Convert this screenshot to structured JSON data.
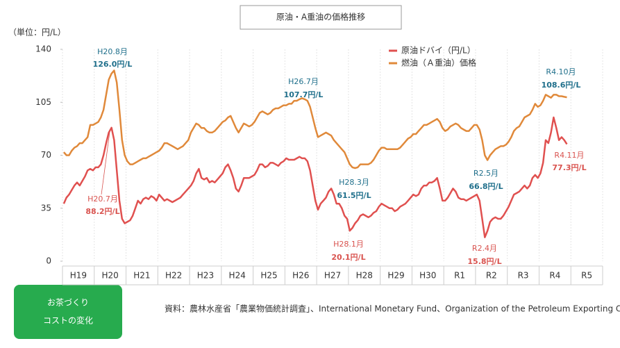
{
  "chart_data": {
    "type": "line",
    "title": "原油・A重油の価格推移",
    "y_label": "（単位：円/L）",
    "source": "資料：農林水産省「農業物価統計調査」、International Monetary Fund、Organization of the Petroleum Exporting Countries",
    "badge": {
      "line1": "お茶づくり",
      "line2": "コストの変化"
    },
    "categories": [
      null,
      null,
      null,
      null,
      null,
      null,
      "H19",
      null,
      null,
      null,
      null,
      null,
      null,
      null,
      null,
      null,
      null,
      null,
      "H20",
      null,
      null,
      null,
      null,
      null,
      null,
      null,
      null,
      null,
      null,
      null,
      "H21",
      null,
      null,
      null,
      null,
      null,
      null,
      null,
      null,
      null,
      null,
      null,
      "H22",
      null,
      null,
      null,
      null,
      null,
      null,
      null,
      null,
      null,
      null,
      null,
      "H23",
      null,
      null,
      null,
      null,
      null,
      null,
      null,
      null,
      null,
      null,
      null,
      "H24",
      null,
      null,
      null,
      null,
      null,
      null,
      null,
      null,
      null,
      null,
      null,
      "H25",
      null,
      null,
      null,
      null,
      null,
      null,
      null,
      null,
      null,
      null,
      null,
      "H26",
      null,
      null,
      null,
      null,
      null,
      null,
      null,
      null,
      null,
      null,
      null,
      "H27",
      null,
      null,
      null,
      null,
      null,
      null,
      null,
      null,
      null,
      null,
      null,
      "H28",
      null,
      null,
      null,
      null,
      null,
      null,
      null,
      null,
      null,
      null,
      null,
      "H29",
      null,
      null,
      null,
      null,
      null,
      null,
      null,
      null,
      null,
      null,
      null,
      "H30",
      null,
      null,
      null,
      null,
      null,
      null,
      null,
      null,
      null,
      null,
      null,
      "R1",
      null,
      null,
      null,
      null,
      null,
      null,
      null,
      null,
      null,
      null,
      null,
      "R2",
      null,
      null,
      null,
      null,
      null,
      null,
      null,
      null,
      null,
      null,
      null,
      "R3",
      null,
      null,
      null,
      null,
      null,
      null,
      null,
      null,
      null,
      null,
      null,
      "R4",
      null,
      null,
      null,
      null,
      null,
      null,
      null,
      null,
      null,
      null,
      null,
      "R5",
      null,
      null,
      null,
      null,
      null
    ],
    "series": [
      {
        "name": "原油ドバイ（円/L）",
        "color": "#e0504f",
        "values": [
          38,
          42,
          44,
          47,
          50,
          52,
          50,
          53,
          56,
          60,
          61,
          60,
          62,
          62,
          64,
          70,
          78,
          85,
          88.2,
          80,
          60,
          40,
          28,
          25,
          26,
          27,
          30,
          35,
          40,
          38,
          41,
          42,
          41,
          43,
          42,
          40,
          44,
          42,
          40,
          41,
          40,
          39,
          40,
          41,
          42,
          44,
          46,
          48,
          50,
          53,
          58,
          61,
          55,
          54,
          55,
          52,
          53,
          52,
          54,
          56,
          58,
          62,
          64,
          60,
          55,
          48,
          46,
          50,
          55,
          55,
          55,
          56,
          57,
          60,
          64,
          64,
          62,
          63,
          65,
          65,
          64,
          63,
          65,
          66,
          68,
          67,
          67,
          67,
          68,
          69,
          68,
          68,
          66,
          60,
          50,
          40,
          34,
          38,
          40,
          42,
          46,
          48,
          44,
          38,
          38,
          35,
          30,
          28,
          20.1,
          22,
          25,
          27,
          30,
          31,
          30,
          29,
          30,
          32,
          33,
          36,
          38,
          37,
          36,
          35,
          35,
          33,
          34,
          36,
          37,
          38,
          40,
          42,
          44,
          43,
          44,
          48,
          50,
          50,
          52,
          52,
          53,
          55,
          48,
          40,
          40,
          42,
          45,
          48,
          46,
          42,
          41,
          41,
          40,
          41,
          42,
          43,
          44,
          40,
          28,
          15.8,
          20,
          26,
          28,
          29,
          28,
          28,
          30,
          33,
          36,
          40,
          44,
          45,
          46,
          48,
          50,
          48,
          50,
          55,
          57,
          55,
          58,
          65,
          80,
          78,
          85,
          95,
          88,
          80,
          82,
          80,
          77.3,
          null,
          null,
          null,
          null,
          null,
          null,
          null,
          null,
          null,
          null,
          null,
          null,
          null
        ]
      },
      {
        "name": "燃油（Ａ重油）価格",
        "color": "#e0893a",
        "values": [
          72,
          70,
          70,
          73,
          75,
          76,
          78,
          78,
          80,
          82,
          90,
          90,
          91,
          92,
          95,
          100,
          110,
          120,
          124,
          126.0,
          118,
          100,
          80,
          70,
          66,
          64,
          64,
          65,
          66,
          67,
          68,
          68,
          69,
          70,
          71,
          72,
          73,
          75,
          78,
          78,
          77,
          76,
          75,
          74,
          75,
          76,
          78,
          80,
          85,
          88,
          91,
          90,
          88,
          88,
          86,
          85,
          85,
          86,
          88,
          90,
          92,
          93,
          95,
          96,
          92,
          88,
          85,
          88,
          91,
          90,
          89,
          90,
          92,
          95,
          98,
          99,
          98,
          97,
          98,
          100,
          101,
          101,
          102,
          103,
          103,
          104,
          104,
          106,
          106,
          107,
          107.7,
          107,
          106,
          102,
          95,
          88,
          82,
          83,
          84,
          85,
          84,
          83,
          80,
          78,
          76,
          74,
          72,
          68,
          64,
          62,
          61.5,
          62,
          64,
          64,
          64,
          64,
          65,
          67,
          70,
          73,
          75,
          75,
          74,
          74,
          74,
          74,
          74,
          75,
          77,
          79,
          81,
          82,
          84,
          84,
          86,
          88,
          90,
          90,
          91,
          92,
          93,
          94,
          92,
          88,
          86,
          87,
          89,
          90,
          91,
          90,
          88,
          87,
          86,
          86,
          88,
          90,
          90,
          87,
          80,
          70,
          66.8,
          70,
          72,
          74,
          75,
          76,
          76,
          77,
          79,
          82,
          86,
          88,
          89,
          92,
          95,
          96,
          97,
          100,
          104,
          102,
          103,
          106,
          110,
          109,
          108,
          110,
          110,
          109,
          109,
          108.6,
          108.3,
          null,
          null,
          null,
          null,
          null,
          null,
          null,
          null,
          null,
          null,
          null,
          null,
          null
        ]
      }
    ],
    "annotations": [
      {
        "date": "H20.8月",
        "value_label": "126.0円/L"
      },
      {
        "date": "H20.7月",
        "value_label": "88.2円/L"
      },
      {
        "date": "H26.7月",
        "value_label": "107.7円/L"
      },
      {
        "date": "H28.3月",
        "value_label": "61.5円/L"
      },
      {
        "date": "H28.1月",
        "value_label": "20.1円/L"
      },
      {
        "date": "R2.5月",
        "value_label": "66.8円/L"
      },
      {
        "date": "R2.4月",
        "value_label": "15.8円/L"
      },
      {
        "date": "R4.10月",
        "value_label": "108.6円/L"
      },
      {
        "date": "R4.11月",
        "value_label": "77.3円/L"
      }
    ],
    "ylim": [
      0,
      140
    ],
    "yticks": [
      0,
      35,
      70,
      105,
      140
    ],
    "grid": "x",
    "legend": "top-right"
  }
}
